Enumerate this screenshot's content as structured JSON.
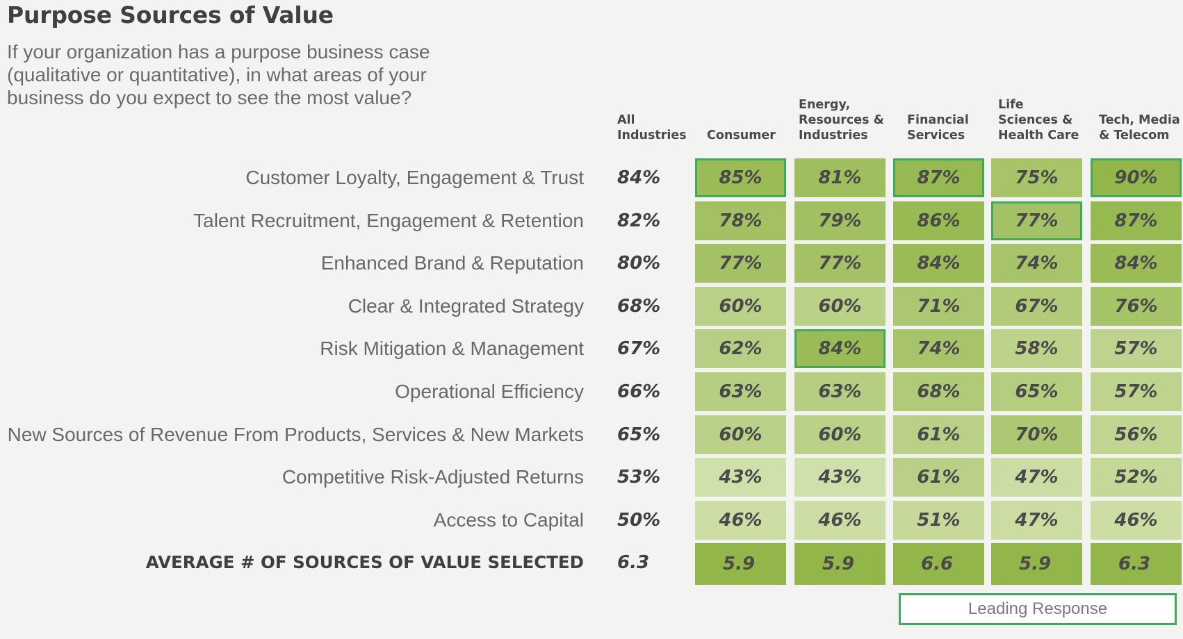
{
  "title": "Purpose Sources of Value",
  "question": "If your organization has a purpose business case (qualitative or quantitative), in what areas of your business do you expect to see the most value?",
  "legend_label": "Leading Response",
  "colors": {
    "leading_border": "#3eaa5c",
    "heat_high": "#93b64b",
    "heat_low": "#d4e3b0"
  },
  "chart_data": {
    "type": "heatmap",
    "title": "Purpose Sources of Value",
    "columns": [
      "All\nIndustries",
      "Consumer",
      "Energy,\nResources &\nIndustries",
      "Financial\nServices",
      "Life\nSciences &\nHealth Care",
      "Tech, Media\n& Telecom"
    ],
    "rows": [
      {
        "label": "Customer Loyalty, Engagement & Trust",
        "all": "84%",
        "values": [
          "85%",
          "81%",
          "87%",
          "75%",
          "90%"
        ],
        "leading": [
          true,
          false,
          true,
          false,
          true
        ]
      },
      {
        "label": "Talent Recruitment, Engagement & Retention",
        "all": "82%",
        "values": [
          "78%",
          "79%",
          "86%",
          "77%",
          "87%"
        ],
        "leading": [
          false,
          false,
          false,
          true,
          false
        ]
      },
      {
        "label": "Enhanced Brand & Reputation",
        "all": "80%",
        "values": [
          "77%",
          "77%",
          "84%",
          "74%",
          "84%"
        ],
        "leading": [
          false,
          false,
          false,
          false,
          false
        ]
      },
      {
        "label": "Clear & Integrated Strategy",
        "all": "68%",
        "values": [
          "60%",
          "60%",
          "71%",
          "67%",
          "76%"
        ],
        "leading": [
          false,
          false,
          false,
          false,
          false
        ]
      },
      {
        "label": "Risk Mitigation & Management",
        "all": "67%",
        "values": [
          "62%",
          "84%",
          "74%",
          "58%",
          "57%"
        ],
        "leading": [
          false,
          true,
          false,
          false,
          false
        ]
      },
      {
        "label": "Operational Efficiency",
        "all": "66%",
        "values": [
          "63%",
          "63%",
          "68%",
          "65%",
          "57%"
        ],
        "leading": [
          false,
          false,
          false,
          false,
          false
        ]
      },
      {
        "label": "New Sources of Revenue From Products, Services & New Markets",
        "all": "65%",
        "values": [
          "60%",
          "60%",
          "61%",
          "70%",
          "56%"
        ],
        "leading": [
          false,
          false,
          false,
          false,
          false
        ]
      },
      {
        "label": "Competitive Risk-Adjusted Returns",
        "all": "53%",
        "values": [
          "43%",
          "43%",
          "61%",
          "47%",
          "52%"
        ],
        "leading": [
          false,
          false,
          false,
          false,
          false
        ]
      },
      {
        "label": "Access to Capital",
        "all": "50%",
        "values": [
          "46%",
          "46%",
          "51%",
          "47%",
          "46%"
        ],
        "leading": [
          false,
          false,
          false,
          false,
          false
        ]
      }
    ],
    "average_row": {
      "label": "AVERAGE # OF SOURCES OF VALUE SELECTED",
      "all": "6.3",
      "values": [
        "5.9",
        "5.9",
        "6.6",
        "5.9",
        "6.3"
      ]
    },
    "legend": [
      "Leading Response"
    ]
  }
}
